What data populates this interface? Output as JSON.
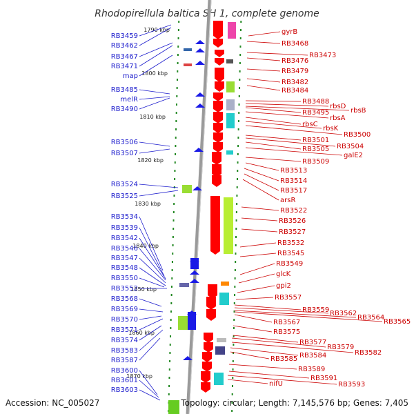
{
  "title": "Rhodopirellula baltica SH 1, complete genome",
  "footer": {
    "accession": "Accession: NC_005027",
    "topology": "Topology: circular; Length: 7,145,576 bp; Genes: 7,405"
  },
  "ticks": [
    "1790 kbp",
    "1800 kbp",
    "1810 kbp",
    "1820 kbp",
    "1830 kbp",
    "1840 kbp",
    "1850 kbp",
    "1860 kbp",
    "1870 kbp"
  ],
  "left_labels": [
    "RB3459",
    "RB3462",
    "RB3467",
    "RB3471",
    "map",
    "RB3485",
    "melR",
    "RB3490",
    "RB3506",
    "RB3507",
    "RB3524",
    "RB3525",
    "RB3534",
    "RB3539",
    "RB3542",
    "RB3546",
    "RB3547",
    "RB3548",
    "RB3550",
    "RB3552",
    "RB3568",
    "RB3569",
    "RB3570",
    "RB3571",
    "RB3574",
    "RB3583",
    "RB3587",
    "RB3600",
    "RB3601",
    "RB3603"
  ],
  "right_labels": [
    "gyrB",
    "RB3468",
    "RB3473",
    "RB3476",
    "RB3479",
    "RB3482",
    "RB3484",
    "RB3488",
    "rbsD",
    "RB3495",
    "rbsB",
    "rbsA",
    "rbsC",
    "rbsK",
    "RB3500",
    "RB3501",
    "RB3504",
    "RB3505",
    "galE2",
    "RB3509",
    "RB3513",
    "RB3514",
    "RB3517",
    "arsR",
    "RB3522",
    "RB3526",
    "RB3527",
    "RB3532",
    "RB3545",
    "RB3549",
    "glcK",
    "gpi2",
    "RB3557",
    "RB3559",
    "RB3562",
    "RB3564",
    "RB3565",
    "RB3567",
    "RB3575",
    "RB3577",
    "RB3579",
    "RB3582",
    "RB3584",
    "RB3585",
    "RB3589",
    "RB3591",
    "RB3593",
    "nifU"
  ],
  "colors": {
    "left_label": "#1a1acc",
    "right_label": "#cc0000",
    "forward_cds": "#1a1ae6",
    "reverse_cds": "#ff0000",
    "backbone": "#888888",
    "gc_skew_green": "#99dd33",
    "tick_dot": "#228822"
  }
}
